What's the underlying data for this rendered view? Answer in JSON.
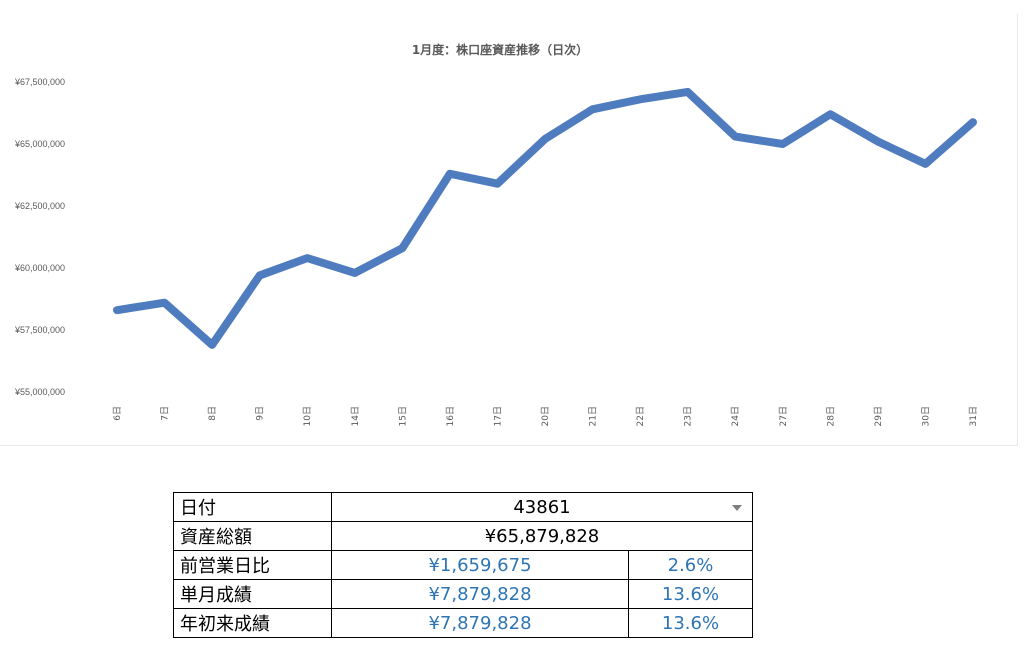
{
  "chart_data": {
    "type": "line",
    "title": "1月度：株口座資産推移（日次）",
    "categories": [
      "6日",
      "7日",
      "8日",
      "9日",
      "10日",
      "14日",
      "15日",
      "16日",
      "17日",
      "20日",
      "21日",
      "22日",
      "23日",
      "24日",
      "27日",
      "28日",
      "29日",
      "30日",
      "31日"
    ],
    "series": [
      {
        "values": [
          58300000,
          58600000,
          56900000,
          59700000,
          60400000,
          59800000,
          60800000,
          63800000,
          63400000,
          65200000,
          66400000,
          66800000,
          67100000,
          65300000,
          65000000,
          66200000,
          65100000,
          64200000,
          65879828
        ],
        "color": "#4f7bbf"
      }
    ],
    "ylim": [
      55000000,
      67500000
    ],
    "yticks": [
      55000000,
      57500000,
      60000000,
      62500000,
      65000000,
      67500000
    ],
    "ytick_labels": [
      "¥55,000,000",
      "¥57,500,000",
      "¥60,000,000",
      "¥62,500,000",
      "¥65,000,000",
      "¥67,500,000"
    ],
    "grid": false,
    "legend": "none"
  },
  "table": {
    "date_label": "日付",
    "date_value": "43861",
    "total_label": "資産総額",
    "total_value": "¥65,879,828",
    "prev_day_label": "前営業日比",
    "prev_day_amount": "¥1,659,675",
    "prev_day_pct": "2.6%",
    "month_label": "単月成績",
    "month_amount": "¥7,879,828",
    "month_pct": "13.6%",
    "ytd_label": "年初来成績",
    "ytd_amount": "¥7,879,828",
    "ytd_pct": "13.6%"
  },
  "colors": {
    "line": "#4f7bbf",
    "value_text": "#2e75b6",
    "axis_text": "#595959"
  }
}
